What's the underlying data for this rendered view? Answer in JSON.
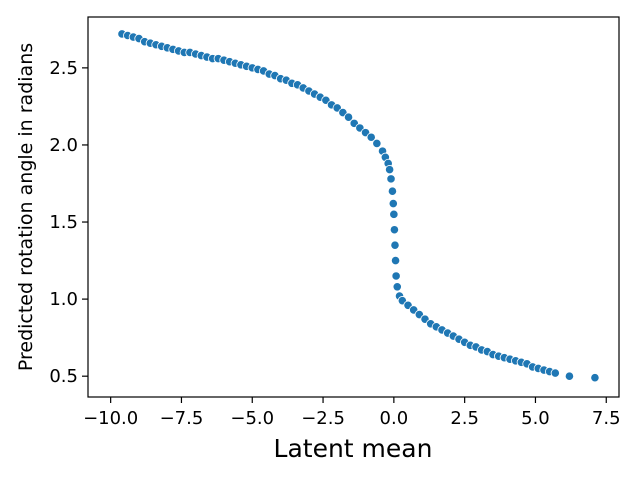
{
  "chart_data": {
    "type": "scatter",
    "title": "",
    "xlabel": "Latent mean",
    "ylabel": "Predicted rotation angle in radians",
    "xlim": [
      -10.8,
      7.95
    ],
    "ylim": [
      0.365,
      2.83
    ],
    "grid": false,
    "x_ticks": [
      -10.0,
      -7.5,
      -5.0,
      -2.5,
      0.0,
      2.5,
      5.0,
      7.5
    ],
    "x_tick_labels": [
      "−10.0",
      "−7.5",
      "−5.0",
      "−2.5",
      "0.0",
      "2.5",
      "5.0",
      "7.5"
    ],
    "y_ticks": [
      0.5,
      1.0,
      1.5,
      2.0,
      2.5
    ],
    "y_tick_labels": [
      "0.5",
      "1.0",
      "1.5",
      "2.0",
      "2.5"
    ],
    "series": [
      {
        "marker_color": "#1f77b4",
        "edge_color": "#ffffff",
        "points": [
          [
            -9.6,
            2.72
          ],
          [
            -9.4,
            2.71
          ],
          [
            -9.2,
            2.7
          ],
          [
            -9.0,
            2.69
          ],
          [
            -8.8,
            2.67
          ],
          [
            -8.6,
            2.66
          ],
          [
            -8.4,
            2.65
          ],
          [
            -8.2,
            2.64
          ],
          [
            -8.0,
            2.63
          ],
          [
            -7.8,
            2.62
          ],
          [
            -7.6,
            2.61
          ],
          [
            -7.4,
            2.6
          ],
          [
            -7.2,
            2.6
          ],
          [
            -7.0,
            2.59
          ],
          [
            -6.8,
            2.58
          ],
          [
            -6.6,
            2.57
          ],
          [
            -6.4,
            2.56
          ],
          [
            -6.2,
            2.56
          ],
          [
            -6.0,
            2.55
          ],
          [
            -5.8,
            2.54
          ],
          [
            -5.6,
            2.53
          ],
          [
            -5.4,
            2.52
          ],
          [
            -5.2,
            2.51
          ],
          [
            -5.0,
            2.5
          ],
          [
            -4.8,
            2.49
          ],
          [
            -4.6,
            2.48
          ],
          [
            -4.4,
            2.46
          ],
          [
            -4.2,
            2.45
          ],
          [
            -4.0,
            2.43
          ],
          [
            -3.8,
            2.42
          ],
          [
            -3.6,
            2.4
          ],
          [
            -3.4,
            2.39
          ],
          [
            -3.2,
            2.37
          ],
          [
            -3.0,
            2.35
          ],
          [
            -2.8,
            2.33
          ],
          [
            -2.6,
            2.31
          ],
          [
            -2.4,
            2.29
          ],
          [
            -2.2,
            2.26
          ],
          [
            -2.0,
            2.24
          ],
          [
            -1.8,
            2.21
          ],
          [
            -1.6,
            2.18
          ],
          [
            -1.4,
            2.14
          ],
          [
            -1.2,
            2.11
          ],
          [
            -1.0,
            2.08
          ],
          [
            -0.8,
            2.05
          ],
          [
            -0.6,
            2.01
          ],
          [
            -0.4,
            1.96
          ],
          [
            -0.3,
            1.92
          ],
          [
            -0.2,
            1.88
          ],
          [
            -0.15,
            1.84
          ],
          [
            -0.1,
            1.78
          ],
          [
            -0.05,
            1.7
          ],
          [
            -0.02,
            1.62
          ],
          [
            0.0,
            1.55
          ],
          [
            0.02,
            1.45
          ],
          [
            0.04,
            1.35
          ],
          [
            0.06,
            1.25
          ],
          [
            0.08,
            1.15
          ],
          [
            0.12,
            1.08
          ],
          [
            0.2,
            1.02
          ],
          [
            0.3,
            0.99
          ],
          [
            0.5,
            0.96
          ],
          [
            0.7,
            0.93
          ],
          [
            0.9,
            0.9
          ],
          [
            1.1,
            0.87
          ],
          [
            1.3,
            0.84
          ],
          [
            1.5,
            0.82
          ],
          [
            1.7,
            0.8
          ],
          [
            1.9,
            0.78
          ],
          [
            2.1,
            0.76
          ],
          [
            2.3,
            0.74
          ],
          [
            2.5,
            0.72
          ],
          [
            2.7,
            0.7
          ],
          [
            2.9,
            0.69
          ],
          [
            3.1,
            0.67
          ],
          [
            3.3,
            0.66
          ],
          [
            3.5,
            0.64
          ],
          [
            3.7,
            0.63
          ],
          [
            3.9,
            0.62
          ],
          [
            4.1,
            0.61
          ],
          [
            4.3,
            0.6
          ],
          [
            4.5,
            0.59
          ],
          [
            4.7,
            0.58
          ],
          [
            4.9,
            0.56
          ],
          [
            5.1,
            0.55
          ],
          [
            5.3,
            0.54
          ],
          [
            5.5,
            0.53
          ],
          [
            5.7,
            0.52
          ],
          [
            6.2,
            0.5
          ],
          [
            7.1,
            0.49
          ]
        ]
      }
    ]
  }
}
